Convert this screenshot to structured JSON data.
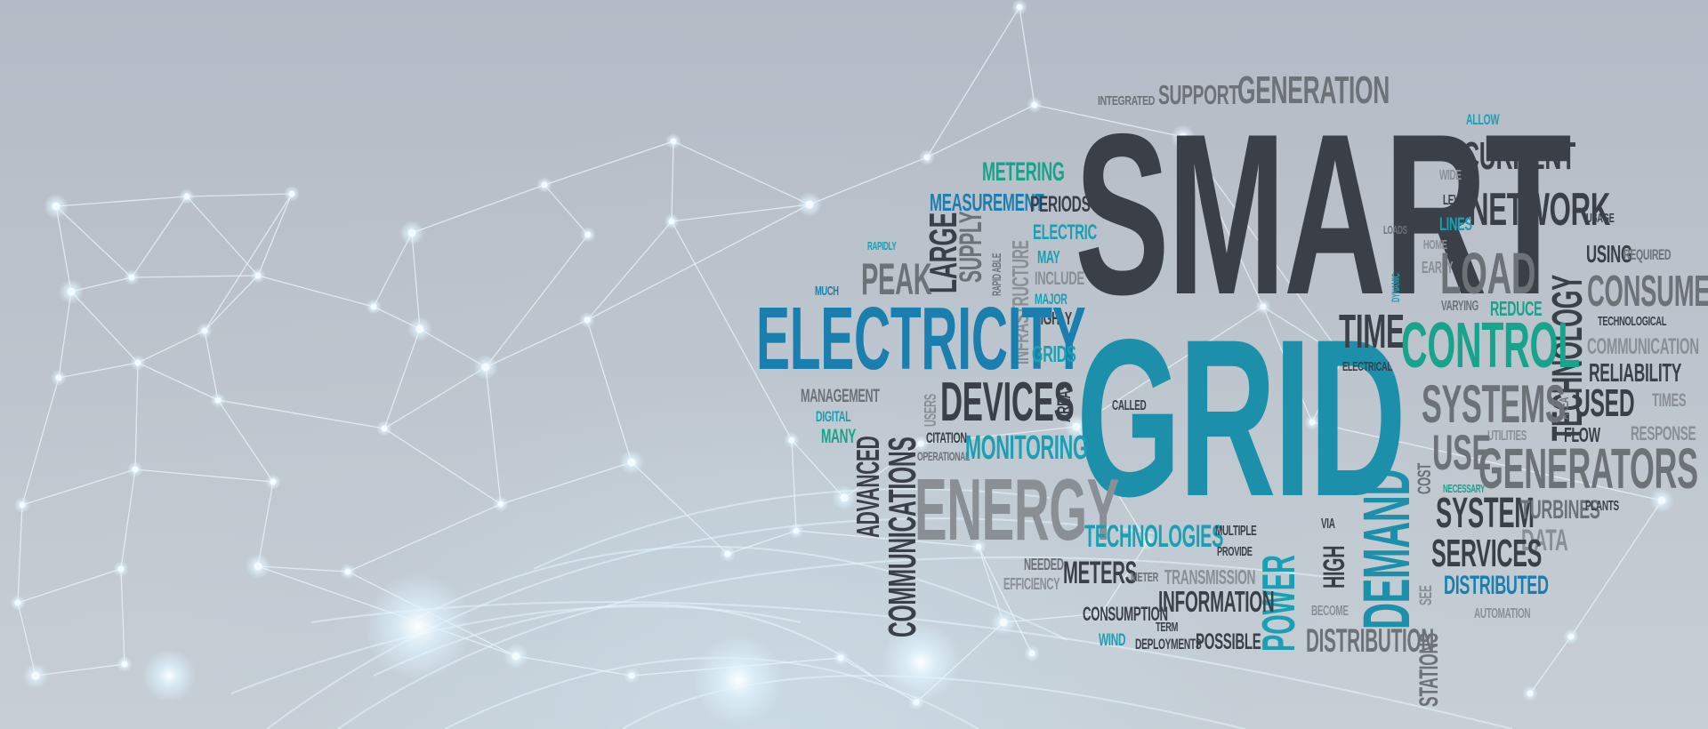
{
  "word_cloud": {
    "main": [
      "SMART",
      "GRID"
    ],
    "words": [
      "INTEGRATED",
      "SUPPORT",
      "GENERATION",
      "ALLOW",
      "CURRENT",
      "WIDE",
      "LEVEL",
      "NETWORK",
      "USAGE",
      "LINES",
      "METERING",
      "MEASUREMENT",
      "PERIODS",
      "ELECTRIC",
      "RAPIDLY",
      "LARGE",
      "SUPPLY",
      "RAPID ABLE",
      "INFRASTRUCTURE",
      "MAY",
      "INCLUDE",
      "PEAK",
      "MUCH",
      "MAJOR",
      "HIGHLY",
      "ELECTRICITY",
      "GRIDS",
      "LOADS",
      "DYNAMIC",
      "HOME",
      "EARLY",
      "LOAD",
      "VARYING",
      "REDUCE",
      "TECHNOLOGY",
      "USING",
      "REQUIRED",
      "CONSUMERS",
      "TECHNOLOGICAL",
      "COMMUNICATION",
      "RELIABILITY",
      "TIME",
      "CONTROL",
      "ELECTRICAL",
      "MANAGEMENT",
      "DIGITAL",
      "MANY",
      "ADVANCED",
      "COMMUNICATIONS",
      "USERS",
      "CITATION",
      "OPERATIONAL",
      "DEVICES",
      "MONITORING",
      "AREAS",
      "CALLED",
      "SYSTEMS",
      "AREA",
      "USED",
      "TIMES",
      "UTILITIES",
      "FLOW",
      "RESPONSE",
      "USE",
      "GENERATORS",
      "ENERGY",
      "COST",
      "DEMAND",
      "NECESSARY",
      "SYSTEM",
      "TURBINES",
      "PLANTS",
      "DATA",
      "TECHNOLOGIES",
      "MULTIPLE",
      "PROVIDE",
      "VIA",
      "SERVICES",
      "NEEDED",
      "EFFICIENCY",
      "METERS",
      "METER",
      "TRANSMISSION",
      "HIGH",
      "POWER",
      "DISTRIBUTED",
      "SEE",
      "INFORMATION",
      "BECOME",
      "AUTOMATION",
      "CONSUMPTION",
      "TERM",
      "WIND",
      "DEPLOYMENTS",
      "POSSIBLE",
      "DISTRIBUTION",
      "STATIONS"
    ]
  },
  "colors": {
    "dark": "#3a3f48",
    "gray": "#6d7178",
    "teal": "#1aa0b4",
    "green": "#18a38c",
    "blue": "#1a7fae",
    "background": "#bcc3cc",
    "network": "#e6f2f8"
  }
}
